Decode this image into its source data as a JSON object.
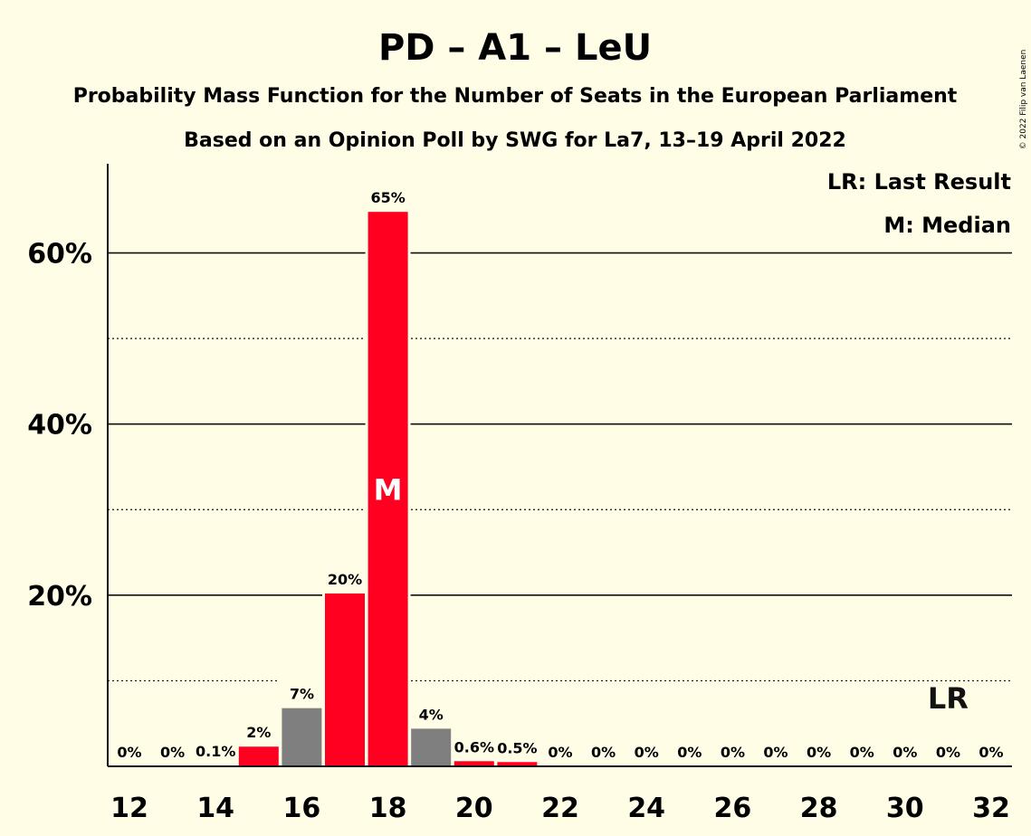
{
  "title": "PD – A1 – LeU",
  "subtitle1": "Probability Mass Function for the Number of Seats in the European Parliament",
  "subtitle2": "Based on an Opinion Poll by SWG for La7, 13–19 April 2022",
  "legend": {
    "last_result": "LR: Last Result",
    "median": "M: Median"
  },
  "copyright": "© 2022 Filip van Laenen",
  "colors": {
    "background": "#fffde6",
    "highlight_bar": "#ff0020",
    "other_bar": "#7f7f7f",
    "axis": "#111111"
  },
  "chart_data": {
    "type": "bar",
    "xlabel": "",
    "ylabel": "",
    "ylim": [
      0,
      70
    ],
    "yticks_major": [
      20,
      40,
      60
    ],
    "yticks_major_labels": [
      "20%",
      "40%",
      "60%"
    ],
    "yticks_minor": [
      10,
      30,
      50
    ],
    "x_tick_labels": [
      "12",
      "14",
      "16",
      "18",
      "20",
      "22",
      "24",
      "26",
      "28",
      "30",
      "32"
    ],
    "categories": [
      12,
      13,
      14,
      15,
      16,
      17,
      18,
      19,
      20,
      21,
      22,
      23,
      24,
      25,
      26,
      27,
      28,
      29,
      30,
      31,
      32
    ],
    "values": [
      0,
      0,
      0.1,
      2.3,
      6.8,
      20.2,
      64.8,
      4.4,
      0.6,
      0.5,
      0,
      0,
      0,
      0,
      0,
      0,
      0,
      0,
      0,
      0,
      0
    ],
    "labels": [
      "0%",
      "0%",
      "0.1%",
      "2%",
      "7%",
      "20%",
      "65%",
      "4%",
      "0.6%",
      "0.5%",
      "0%",
      "0%",
      "0%",
      "0%",
      "0%",
      "0%",
      "0%",
      "0%",
      "0%",
      "0%",
      "0%"
    ],
    "bar_colors": [
      "red",
      "red",
      "red",
      "red",
      "gray",
      "red",
      "red",
      "gray",
      "red",
      "red",
      "red",
      "red",
      "red",
      "red",
      "red",
      "red",
      "red",
      "red",
      "red",
      "red",
      "red"
    ],
    "median": 18,
    "median_label": "M",
    "last_result": 31,
    "last_result_label": "LR",
    "grid": true,
    "legend_position": "top-right"
  }
}
